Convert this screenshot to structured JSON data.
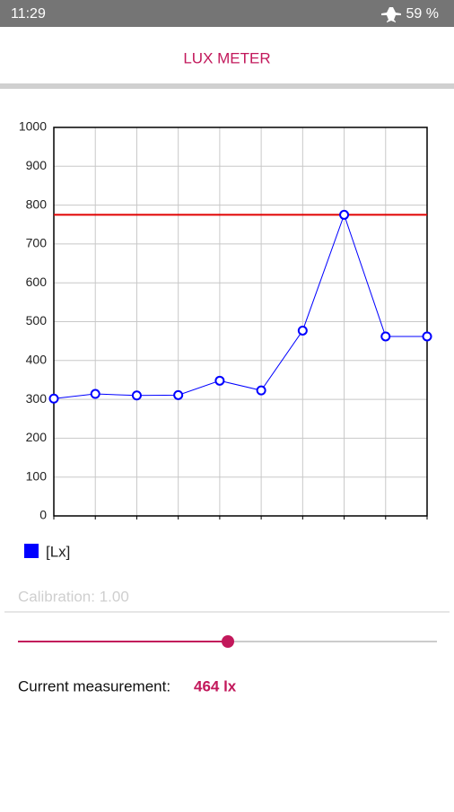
{
  "status": {
    "time": "11:29",
    "battery": "59 %"
  },
  "header": {
    "title": "LUX METER"
  },
  "chart_data": {
    "type": "line",
    "categories": [
      null,
      null,
      null,
      null,
      null,
      null,
      null,
      null,
      null,
      null
    ],
    "series": [
      {
        "name": "[Lx]",
        "color": "#0000ff",
        "values": [
          302,
          314,
          310,
          311,
          348,
          323,
          477,
          775,
          462,
          462
        ]
      }
    ],
    "hlines": [
      {
        "value": 775,
        "color": "#e00000"
      }
    ],
    "ylim": [
      0,
      1000
    ],
    "yticks": [
      0,
      100,
      200,
      300,
      400,
      500,
      600,
      700,
      800,
      900,
      1000
    ],
    "grid": true
  },
  "calibration": "Calibration: 1.00",
  "measurement": {
    "label": "Current measurement:",
    "value": "464 lx"
  }
}
